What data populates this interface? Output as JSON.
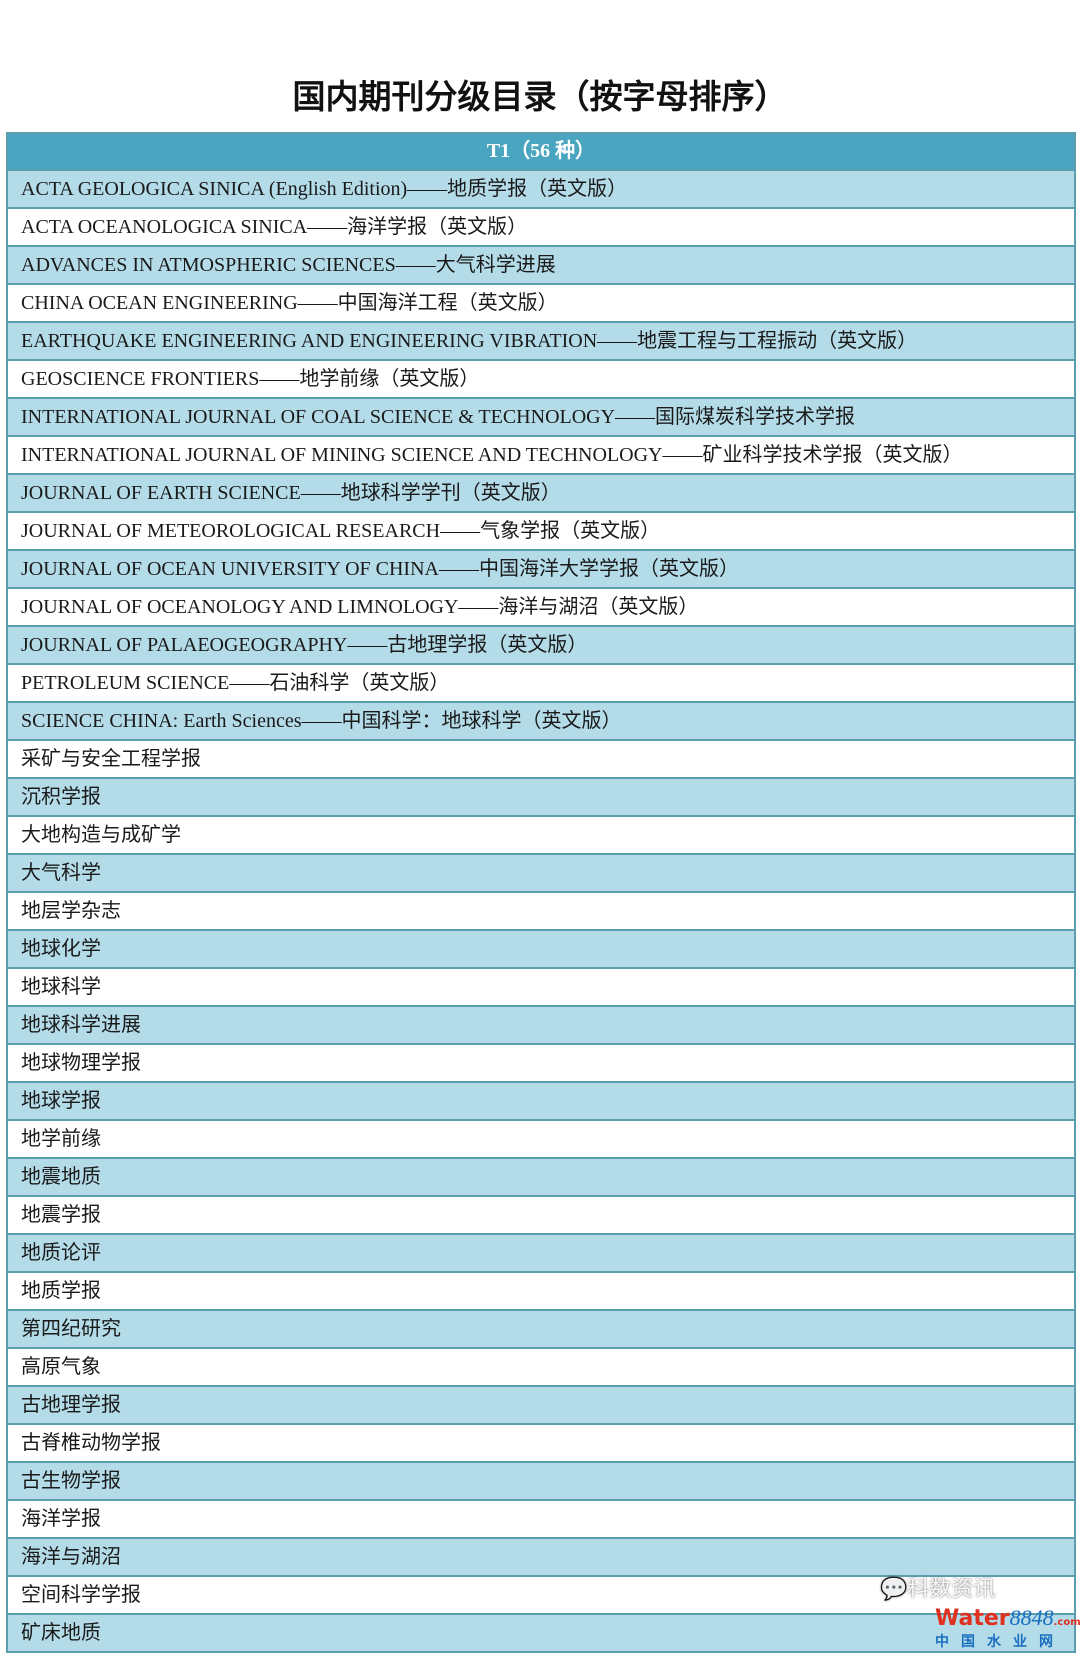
{
  "title": "国内期刊分级目录（按字母排序）",
  "table": {
    "header": "T1（56 种）",
    "rows": [
      "ACTA GEOLOGICA SINICA (English Edition)——地质学报（英文版）",
      "ACTA OCEANOLOGICA SINICA——海洋学报（英文版）",
      "ADVANCES IN ATMOSPHERIC SCIENCES——大气科学进展",
      "CHINA OCEAN ENGINEERING——中国海洋工程（英文版）",
      "EARTHQUAKE ENGINEERING AND ENGINEERING VIBRATION——地震工程与工程振动（英文版）",
      "GEOSCIENCE FRONTIERS——地学前缘（英文版）",
      "INTERNATIONAL JOURNAL OF COAL SCIENCE & TECHNOLOGY——国际煤炭科学技术学报",
      "INTERNATIONAL JOURNAL OF MINING SCIENCE AND TECHNOLOGY——矿业科学技术学报（英文版）",
      "JOURNAL OF EARTH SCIENCE——地球科学学刊（英文版）",
      "JOURNAL OF METEOROLOGICAL RESEARCH——气象学报（英文版）",
      "JOURNAL OF OCEAN UNIVERSITY OF CHINA——中国海洋大学学报（英文版）",
      "JOURNAL OF OCEANOLOGY AND LIMNOLOGY——海洋与湖沼（英文版）",
      "JOURNAL OF PALAEOGEOGRAPHY——古地理学报（英文版）",
      "PETROLEUM SCIENCE——石油科学（英文版）",
      "SCIENCE CHINA: Earth Sciences——中国科学：地球科学（英文版）",
      "采矿与安全工程学报",
      "沉积学报",
      "大地构造与成矿学",
      "大气科学",
      "地层学杂志",
      "地球化学",
      "地球科学",
      "地球科学进展",
      "地球物理学报",
      "地球学报",
      "地学前缘",
      "地震地质",
      "地震学报",
      "地质论评",
      "地质学报",
      "第四纪研究",
      "高原气象",
      "古地理学报",
      "古脊椎动物学报",
      "古生物学报",
      "海洋学报",
      "海洋与湖沼",
      "空间科学学报",
      "矿床地质"
    ]
  },
  "watermark": {
    "wechat": "科数资讯",
    "brand_a": "Water",
    "brand_b": "8848",
    "brand_c": ".com",
    "sub": "中国水业网"
  },
  "colors": {
    "header": "#4aa6c0",
    "row_alt": "#b3dbe8",
    "border": "#5b9eae"
  }
}
